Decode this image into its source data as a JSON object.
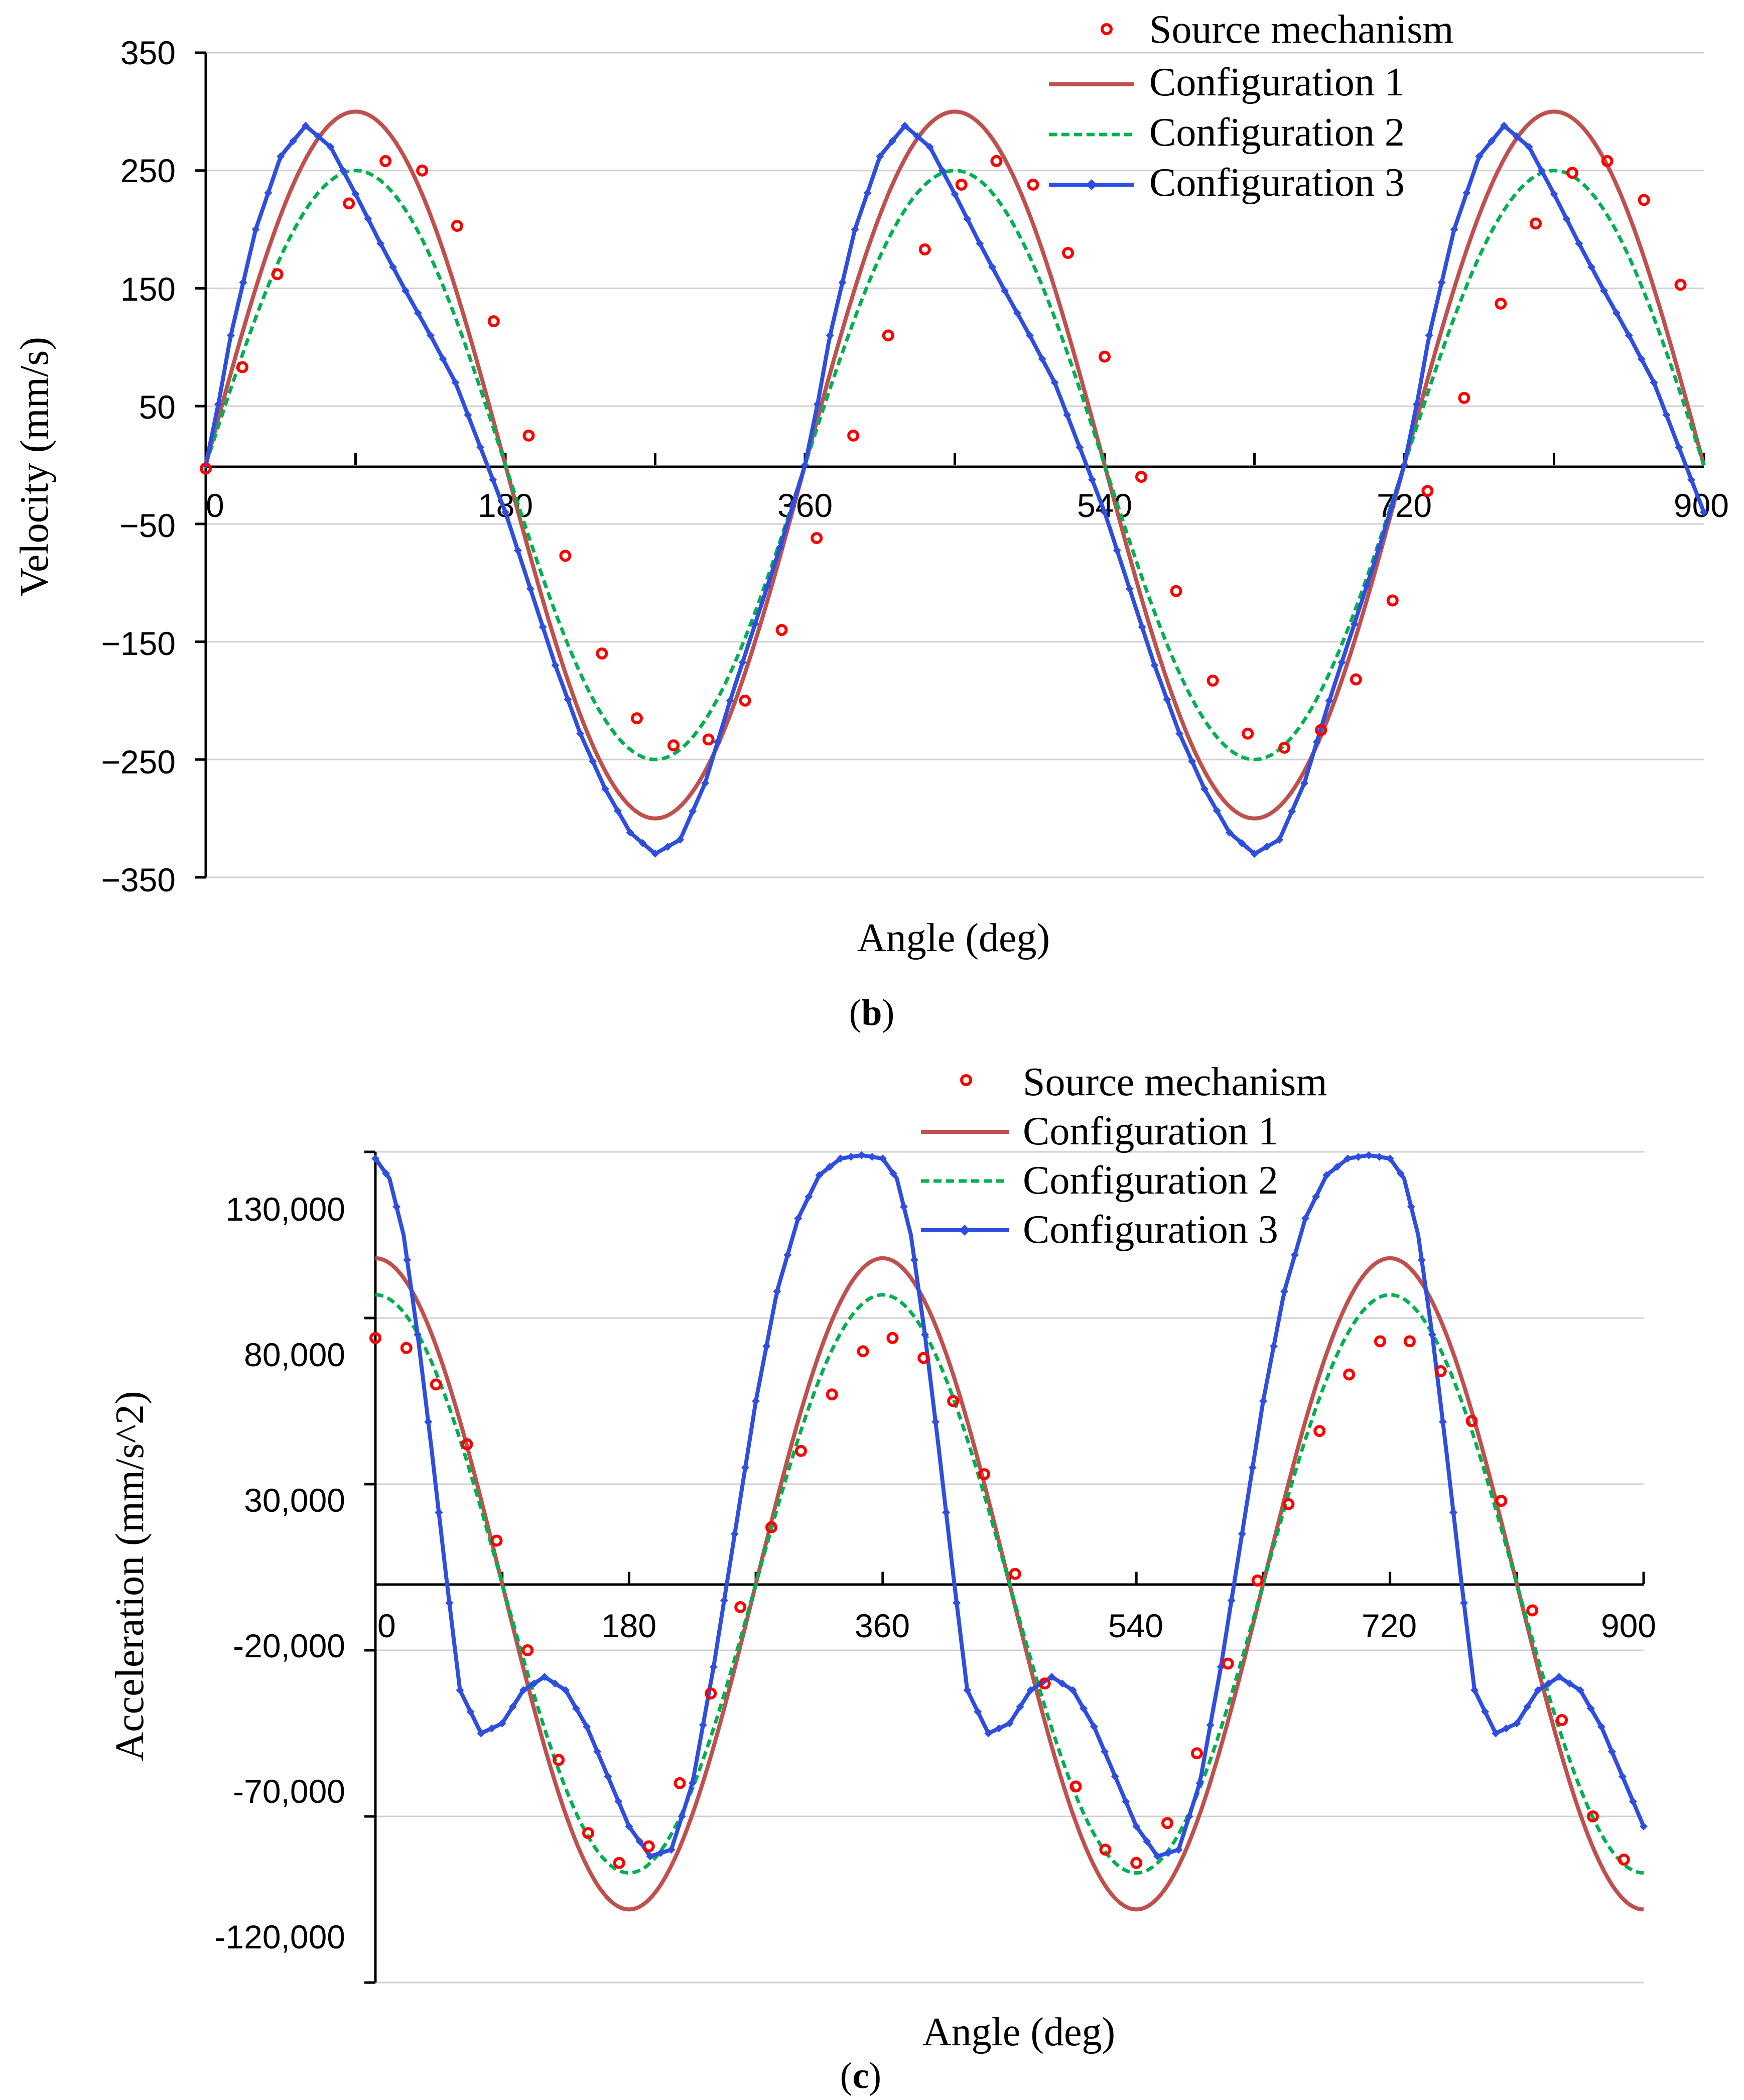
{
  "chart_data": [
    {
      "id": "b",
      "type": "line",
      "caption_open": "(",
      "caption_letter": "b",
      "caption_close": ")",
      "xlabel": "Angle (deg)",
      "ylabel": "Velocity (mm/s)",
      "xlim": [
        0,
        900
      ],
      "ylim": [
        -350,
        350
      ],
      "xticks": [
        "0",
        "180",
        "360",
        "540",
        "720",
        "900"
      ],
      "yticks": [
        "350",
        "250",
        "150",
        "50",
        "−50",
        "−150",
        "−250",
        "−350"
      ],
      "grid": true,
      "legend_position": "top-right",
      "series": [
        {
          "name": "Source mechanism",
          "style": "markers",
          "color": "#ff0000",
          "x": [
            0,
            22,
            43,
            86,
            108,
            130,
            151,
            173,
            194,
            216,
            238,
            259,
            281,
            302,
            324,
            346,
            367,
            389,
            410,
            432,
            454,
            475,
            497,
            518,
            540,
            562,
            583,
            605,
            626,
            648,
            670,
            691,
            713,
            734,
            756,
            778,
            799,
            821,
            842,
            864,
            886
          ],
          "y": [
            -3,
            83,
            162,
            222,
            258,
            250,
            203,
            122,
            25,
            -77,
            -160,
            -215,
            -238,
            -233,
            -200,
            -140,
            -62,
            25,
            110,
            183,
            238,
            258,
            238,
            180,
            92,
            -10,
            -107,
            -183,
            -228,
            -240,
            -225,
            -182,
            -115,
            -22,
            57,
            137,
            205,
            248,
            258,
            225,
            153
          ]
        },
        {
          "name": "Configuration 1",
          "style": "line",
          "color": "#c0504d",
          "fn": "sine",
          "amplitude": 300,
          "phase": 0,
          "x_max": 900
        },
        {
          "name": "Configuration 2",
          "style": "dashed",
          "color": "#00b050",
          "fn": "sine",
          "amplitude": 250,
          "phase": 0,
          "x_max": 900
        },
        {
          "name": "Configuration 3",
          "style": "line-diamond",
          "color": "#2e4ee0",
          "x": [
            0,
            8,
            15,
            30,
            45,
            60,
            75,
            90,
            105,
            120,
            135,
            150,
            165,
            180,
            195,
            210,
            225,
            240,
            255,
            270,
            285,
            300,
            315,
            330,
            345,
            360
          ],
          "y": [
            0,
            55,
            110,
            200,
            262,
            288,
            270,
            230,
            188,
            148,
            110,
            70,
            15,
            -40,
            -105,
            -170,
            -228,
            -275,
            -312,
            -330,
            -318,
            -270,
            -200,
            -135,
            -70,
            0
          ],
          "periodic": 360,
          "x_max": 900
        }
      ]
    },
    {
      "id": "c",
      "type": "line",
      "caption_open": "(",
      "caption_letter": "c",
      "caption_close": ")",
      "xlabel": "Angle (deg)",
      "ylabel": "Acceleration (mm/s^2)",
      "xlim": [
        0,
        900
      ],
      "ylim": [
        -120000,
        130000
      ],
      "xticks": [
        "0",
        "180",
        "360",
        "540",
        "720",
        "900"
      ],
      "yticks": [
        "130,000",
        "80,000",
        "30,000",
        "-20,000",
        "-70,000",
        "-120,000"
      ],
      "grid": true,
      "legend_position": "top-right",
      "series": [
        {
          "name": "Source mechanism",
          "style": "markers",
          "color": "#ff0000",
          "x": [
            0,
            22,
            43,
            65,
            86,
            108,
            130,
            151,
            173,
            194,
            216,
            238,
            259,
            281,
            302,
            324,
            346,
            367,
            389,
            410,
            432,
            454,
            475,
            497,
            518,
            540,
            562,
            583,
            605,
            626,
            648,
            670,
            691,
            713,
            734,
            756,
            778,
            799,
            821,
            842,
            864,
            886
          ],
          "y": [
            74000,
            71000,
            60000,
            42000,
            13000,
            -20000,
            -53000,
            -75000,
            -84000,
            -79000,
            -60000,
            -33000,
            -7000,
            17000,
            40000,
            57000,
            70000,
            74000,
            68000,
            55000,
            33000,
            3000,
            -30000,
            -61000,
            -80000,
            -84000,
            -72000,
            -51000,
            -24000,
            1000,
            24000,
            46000,
            63000,
            73000,
            73000,
            64000,
            49000,
            25000,
            -8000,
            -41000,
            -70000,
            -83000
          ]
        },
        {
          "name": "Configuration 1",
          "style": "line",
          "color": "#c0504d",
          "fn": "cosine",
          "amplitude": 98000,
          "phase": 0,
          "x_max": 900
        },
        {
          "name": "Configuration 2",
          "style": "dashed",
          "color": "#00b050",
          "fn": "cosine",
          "amplitude": 87000,
          "phase": 0,
          "x_max": 900
        },
        {
          "name": "Configuration 3",
          "style": "line-diamond",
          "color": "#2e4ee0",
          "x": [
            0,
            10,
            20,
            30,
            40,
            50,
            60,
            75,
            90,
            105,
            120,
            135,
            150,
            165,
            180,
            195,
            210,
            225,
            240,
            255,
            270,
            285,
            300,
            315,
            330,
            345,
            360
          ],
          "y": [
            128000,
            122000,
            105000,
            75000,
            40000,
            3000,
            -32000,
            -45000,
            -42000,
            -32000,
            -28000,
            -32000,
            -43000,
            -58000,
            -73000,
            -82000,
            -80000,
            -60000,
            -25000,
            15000,
            55000,
            88000,
            110000,
            123000,
            128000,
            129000,
            128000
          ],
          "periodic": 360,
          "x_max": 900
        }
      ]
    }
  ]
}
